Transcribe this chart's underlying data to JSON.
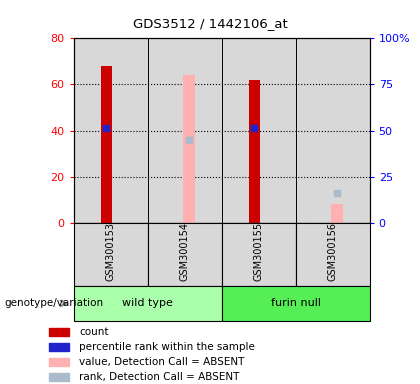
{
  "title": "GDS3512 / 1442106_at",
  "samples": [
    "GSM300153",
    "GSM300154",
    "GSM300155",
    "GSM300156"
  ],
  "group_label": "genotype/variation",
  "ylim_left": [
    0,
    80
  ],
  "ylim_right": [
    0,
    100
  ],
  "yticks_left": [
    0,
    20,
    40,
    60,
    80
  ],
  "yticks_right": [
    0,
    25,
    50,
    75,
    100
  ],
  "red_bars": [
    68,
    0,
    62,
    0
  ],
  "pink_bars": [
    0,
    64,
    0,
    8
  ],
  "blue_dots": [
    41,
    0,
    41,
    0
  ],
  "light_blue_dots": [
    0,
    36,
    0,
    13
  ],
  "bar_color_red": "#cc0000",
  "bar_color_pink": "#ffb0b0",
  "dot_color_blue": "#2222cc",
  "dot_color_light_blue": "#aabbcc",
  "sample_bg": "#d8d8d8",
  "group_wt_color": "#aaffaa",
  "group_fn_color": "#55ee55",
  "legend_labels": [
    "count",
    "percentile rank within the sample",
    "value, Detection Call = ABSENT",
    "rank, Detection Call = ABSENT"
  ],
  "legend_colors": [
    "#cc0000",
    "#2222cc",
    "#ffb0b0",
    "#aabbcc"
  ],
  "bar_width": 0.15,
  "dot_size": 18
}
